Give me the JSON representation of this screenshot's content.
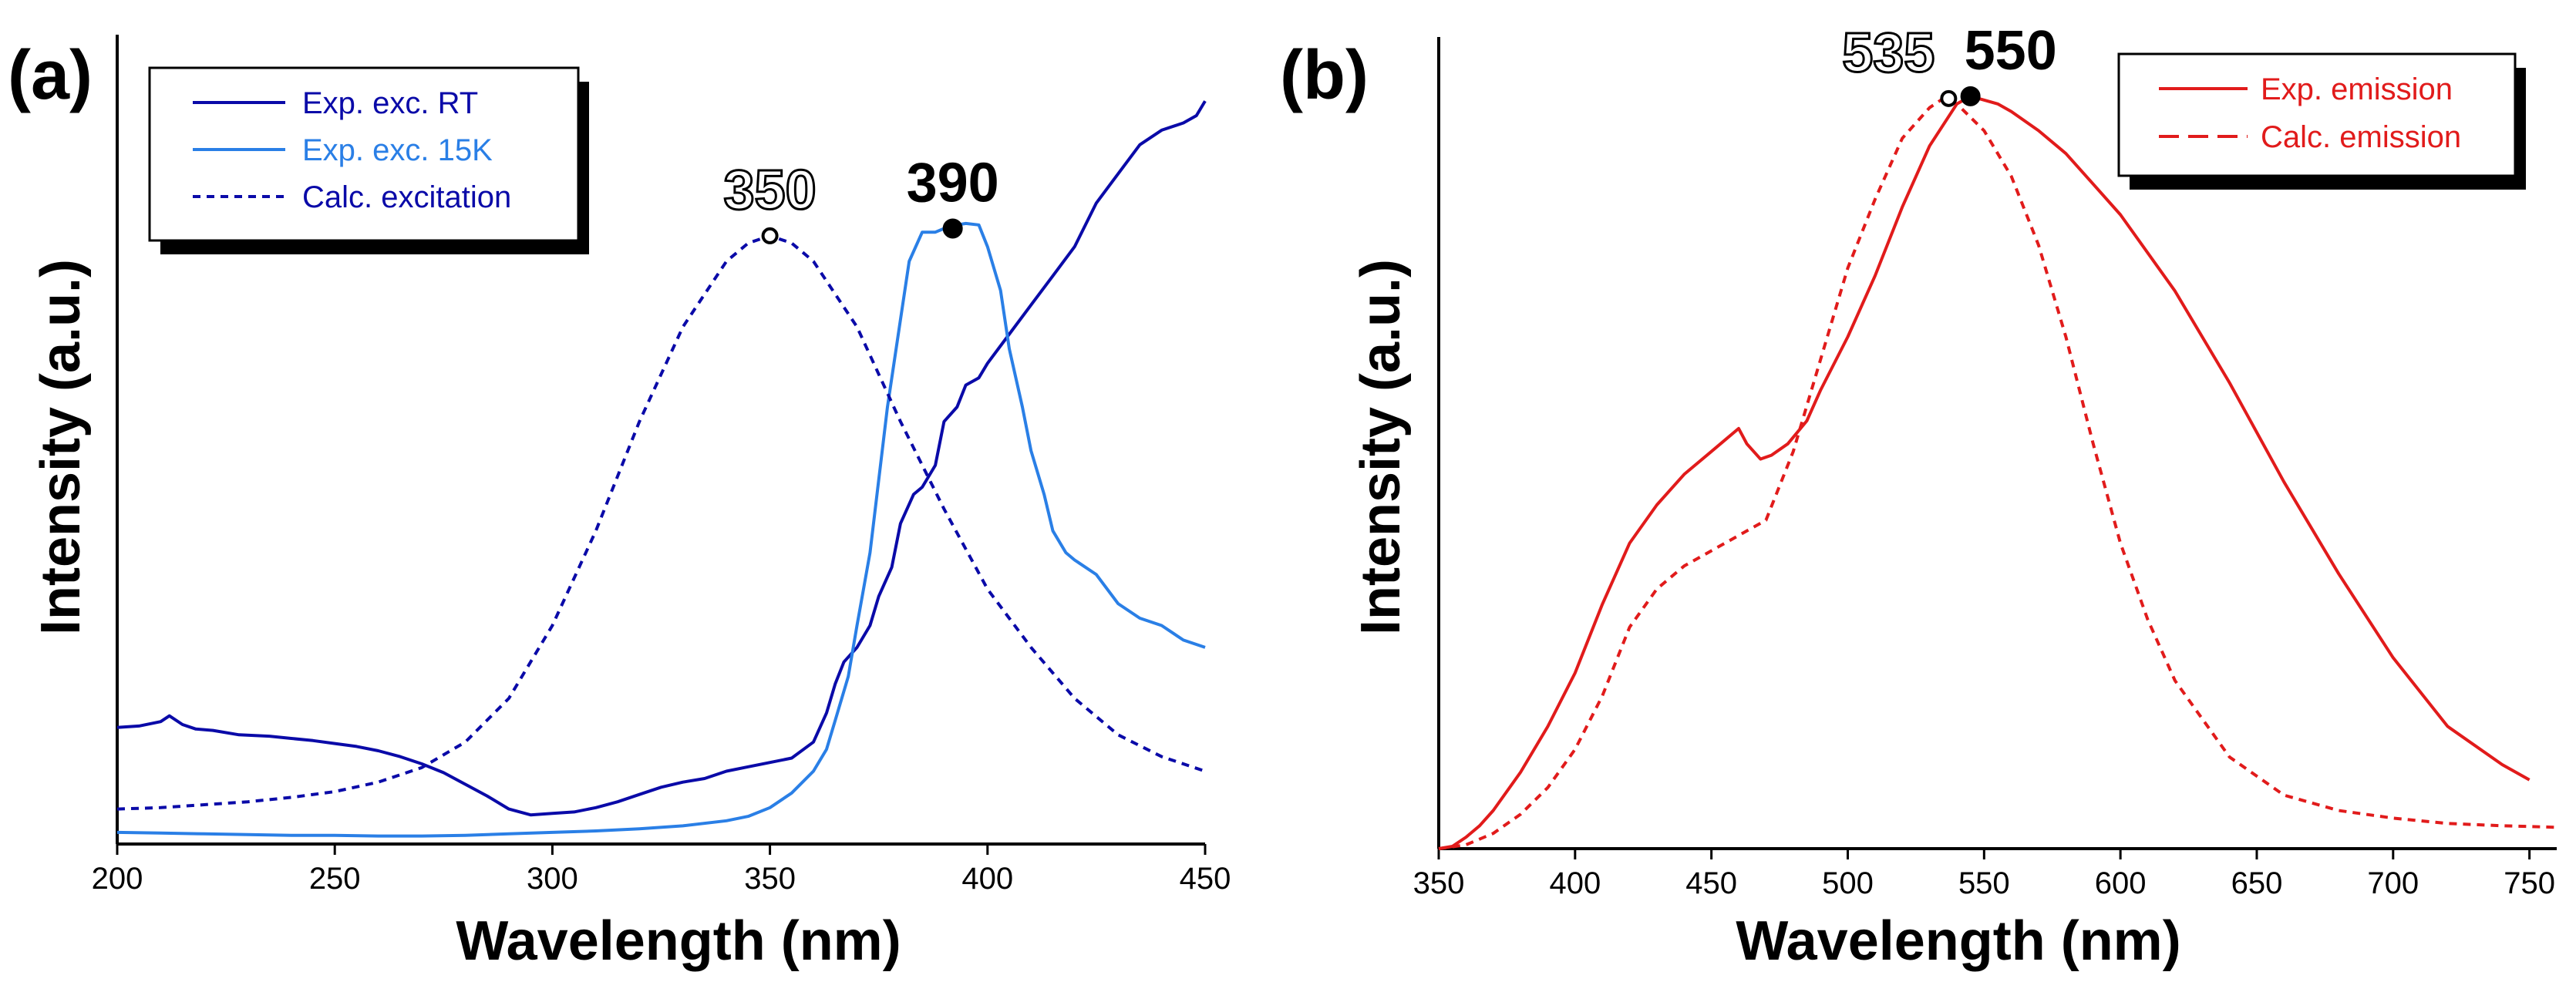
{
  "chart_data": [
    {
      "panel_label": "(a)",
      "type": "line",
      "xlabel": "Wavelength (nm)",
      "ylabel": "Intensity (a.u.)",
      "xlim": [
        200,
        450
      ],
      "ylim": [
        0,
        1
      ],
      "xticks": [
        "200",
        "250",
        "300",
        "350",
        "400",
        "450"
      ],
      "grid": false,
      "legend_position": "top-left",
      "series": [
        {
          "name": "Exp. exc. RT",
          "color": "#0a0aa8",
          "style": "solid",
          "x": [
            200,
            205,
            210,
            212,
            215,
            218,
            222,
            228,
            235,
            240,
            245,
            250,
            255,
            260,
            265,
            270,
            275,
            280,
            285,
            290,
            295,
            300,
            305,
            310,
            315,
            320,
            325,
            330,
            335,
            340,
            345,
            350,
            355,
            360,
            363,
            365,
            367,
            370,
            373,
            375,
            378,
            380,
            383,
            385,
            388,
            390,
            393,
            395,
            398,
            400,
            405,
            410,
            415,
            420,
            425,
            430,
            435,
            440,
            445,
            448,
            450
          ],
          "y": [
            0.16,
            0.162,
            0.168,
            0.176,
            0.164,
            0.158,
            0.156,
            0.15,
            0.148,
            0.145,
            0.142,
            0.138,
            0.134,
            0.128,
            0.12,
            0.11,
            0.098,
            0.082,
            0.066,
            0.048,
            0.04,
            0.042,
            0.044,
            0.05,
            0.058,
            0.068,
            0.078,
            0.085,
            0.09,
            0.1,
            0.106,
            0.112,
            0.118,
            0.14,
            0.18,
            0.22,
            0.25,
            0.27,
            0.3,
            0.34,
            0.38,
            0.44,
            0.48,
            0.49,
            0.52,
            0.58,
            0.6,
            0.63,
            0.64,
            0.66,
            0.7,
            0.74,
            0.78,
            0.82,
            0.88,
            0.92,
            0.96,
            0.98,
            0.99,
            1.0,
            1.02
          ]
        },
        {
          "name": "Exp. exc. 15K",
          "color": "#2a7fe6",
          "style": "solid",
          "x": [
            200,
            210,
            220,
            230,
            240,
            250,
            260,
            270,
            280,
            290,
            300,
            310,
            320,
            330,
            340,
            345,
            350,
            355,
            360,
            363,
            365,
            368,
            370,
            373,
            375,
            377,
            380,
            382,
            385,
            388,
            390,
            393,
            395,
            398,
            400,
            403,
            405,
            408,
            410,
            413,
            415,
            418,
            420,
            425,
            430,
            435,
            440,
            445,
            450
          ],
          "y": [
            0.016,
            0.015,
            0.014,
            0.013,
            0.012,
            0.012,
            0.011,
            0.011,
            0.012,
            0.014,
            0.016,
            0.018,
            0.021,
            0.025,
            0.032,
            0.038,
            0.05,
            0.07,
            0.1,
            0.13,
            0.17,
            0.23,
            0.3,
            0.4,
            0.5,
            0.6,
            0.72,
            0.8,
            0.84,
            0.84,
            0.845,
            0.85,
            0.852,
            0.85,
            0.82,
            0.76,
            0.68,
            0.6,
            0.54,
            0.48,
            0.43,
            0.4,
            0.39,
            0.37,
            0.33,
            0.31,
            0.3,
            0.28,
            0.27
          ]
        },
        {
          "name": "Calc. excitation",
          "color": "#0a0aa8",
          "style": "dashed",
          "x": [
            200,
            210,
            220,
            230,
            240,
            250,
            260,
            270,
            280,
            290,
            300,
            310,
            320,
            330,
            340,
            345,
            350,
            355,
            360,
            370,
            380,
            390,
            400,
            410,
            420,
            430,
            440,
            450
          ],
          "y": [
            0.048,
            0.05,
            0.054,
            0.058,
            0.064,
            0.072,
            0.085,
            0.105,
            0.14,
            0.2,
            0.3,
            0.43,
            0.58,
            0.71,
            0.8,
            0.825,
            0.835,
            0.825,
            0.8,
            0.71,
            0.58,
            0.46,
            0.35,
            0.27,
            0.2,
            0.15,
            0.12,
            0.1
          ]
        }
      ],
      "annotations": [
        {
          "text": "350",
          "x": 350,
          "y": 0.835,
          "marker": "open"
        },
        {
          "text": "390",
          "x": 392,
          "y": 0.845,
          "marker": "filled"
        }
      ]
    },
    {
      "panel_label": "(b)",
      "type": "line",
      "xlabel": "Wavelength (nm)",
      "ylabel": "Intensity (a.u.)",
      "xlim": [
        350,
        760
      ],
      "ylim": [
        0,
        1
      ],
      "xticks": [
        "350",
        "400",
        "450",
        "500",
        "550",
        "600",
        "650",
        "700",
        "750"
      ],
      "grid": false,
      "legend_position": "top-right",
      "series": [
        {
          "name": "Exp. emission",
          "color": "#e11b1b",
          "style": "solid",
          "x": [
            350,
            355,
            360,
            365,
            370,
            380,
            390,
            400,
            410,
            420,
            430,
            440,
            450,
            455,
            460,
            463,
            468,
            472,
            478,
            485,
            490,
            500,
            510,
            520,
            530,
            540,
            545,
            550,
            555,
            560,
            570,
            580,
            590,
            600,
            620,
            640,
            660,
            680,
            700,
            720,
            740,
            750
          ],
          "y": [
            0.0,
            0.003,
            0.015,
            0.03,
            0.05,
            0.1,
            0.16,
            0.23,
            0.32,
            0.4,
            0.45,
            0.49,
            0.52,
            0.535,
            0.55,
            0.53,
            0.51,
            0.515,
            0.53,
            0.56,
            0.6,
            0.67,
            0.75,
            0.84,
            0.92,
            0.975,
            0.985,
            0.98,
            0.975,
            0.965,
            0.94,
            0.91,
            0.87,
            0.83,
            0.73,
            0.61,
            0.48,
            0.36,
            0.25,
            0.16,
            0.11,
            0.09
          ]
        },
        {
          "name": "Calc. emission",
          "color": "#e11b1b",
          "style": "dashed",
          "x": [
            350,
            360,
            370,
            380,
            390,
            400,
            410,
            420,
            430,
            440,
            450,
            460,
            470,
            480,
            490,
            500,
            510,
            520,
            530,
            535,
            540,
            550,
            560,
            570,
            580,
            590,
            600,
            610,
            620,
            640,
            660,
            680,
            700,
            720,
            740,
            760
          ],
          "y": [
            0.0,
            0.005,
            0.02,
            0.045,
            0.08,
            0.13,
            0.2,
            0.29,
            0.34,
            0.37,
            0.39,
            0.41,
            0.43,
            0.52,
            0.64,
            0.76,
            0.85,
            0.93,
            0.97,
            0.982,
            0.975,
            0.94,
            0.88,
            0.79,
            0.67,
            0.53,
            0.4,
            0.3,
            0.22,
            0.12,
            0.07,
            0.05,
            0.04,
            0.033,
            0.03,
            0.028
          ]
        }
      ],
      "annotations": [
        {
          "text": "535",
          "x": 537,
          "y": 0.982,
          "marker": "open"
        },
        {
          "text": "550",
          "x": 545,
          "y": 0.985,
          "marker": "filled"
        }
      ]
    }
  ]
}
